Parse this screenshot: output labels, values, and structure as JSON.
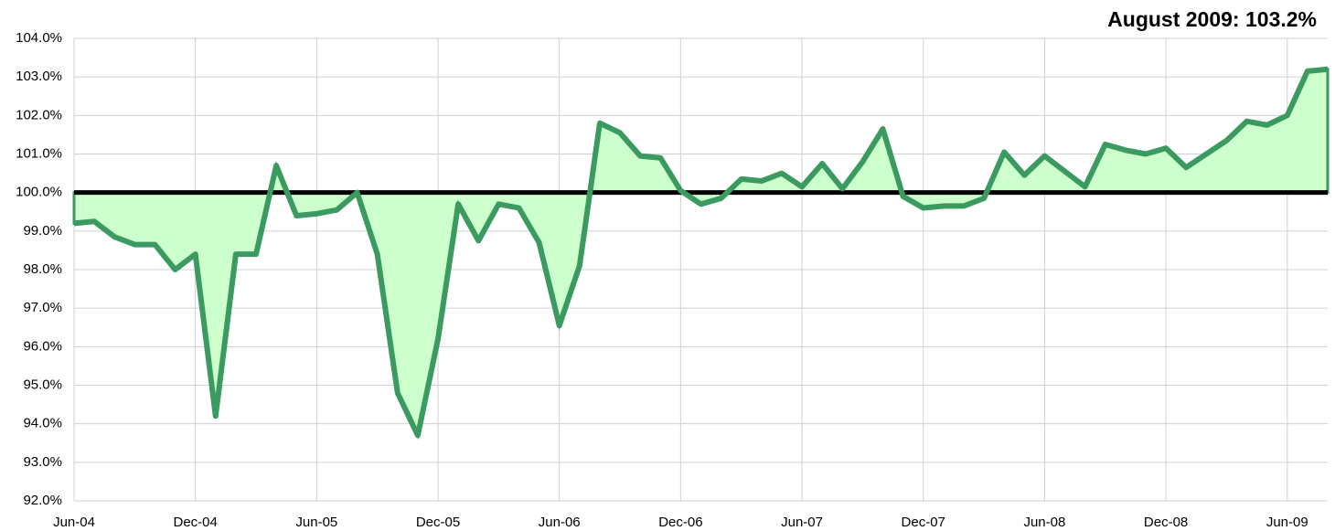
{
  "chart_data": {
    "type": "area",
    "annotation": "August 2009: 103.2%",
    "categories": [
      "Jun-04",
      null,
      null,
      null,
      null,
      null,
      "Dec-04",
      null,
      null,
      null,
      null,
      null,
      "Jun-05",
      null,
      null,
      null,
      null,
      null,
      "Dec-05",
      null,
      null,
      null,
      null,
      null,
      "Jun-06",
      null,
      null,
      null,
      null,
      null,
      "Dec-06",
      null,
      null,
      null,
      null,
      null,
      "Jun-07",
      null,
      null,
      null,
      null,
      null,
      "Dec-07",
      null,
      null,
      null,
      null,
      null,
      "Jun-08",
      null,
      null,
      null,
      null,
      null,
      "Dec-08",
      null,
      null,
      null,
      null,
      null,
      "Jun-09",
      null,
      null
    ],
    "values": [
      99.2,
      99.25,
      98.85,
      98.65,
      98.65,
      98.0,
      98.4,
      94.2,
      98.4,
      98.4,
      100.7,
      99.4,
      99.45,
      99.55,
      100.0,
      98.4,
      94.8,
      93.7,
      96.2,
      99.7,
      98.75,
      99.7,
      99.6,
      98.7,
      96.55,
      98.1,
      101.8,
      101.55,
      100.95,
      100.9,
      100.05,
      99.7,
      99.85,
      100.35,
      100.3,
      100.5,
      100.15,
      100.75,
      100.1,
      100.8,
      101.65,
      99.9,
      99.6,
      99.65,
      99.65,
      99.85,
      101.05,
      100.45,
      100.95,
      100.55,
      100.15,
      101.25,
      101.1,
      101.0,
      101.15,
      100.65,
      101.0,
      101.35,
      101.85,
      101.75,
      102.0,
      103.15,
      103.2
    ],
    "color": "#3a9a60",
    "fill_color": "#ccffcc",
    "baseline": 100,
    "baseline_color": "#000000",
    "ylim": [
      92,
      104
    ],
    "yticks": [
      {
        "value": 92,
        "label": "92.0%"
      },
      {
        "value": 93,
        "label": "93.0%"
      },
      {
        "value": 94,
        "label": "94.0%"
      },
      {
        "value": 95,
        "label": "95.0%"
      },
      {
        "value": 96,
        "label": "96.0%"
      },
      {
        "value": 97,
        "label": "97.0%"
      },
      {
        "value": 98,
        "label": "98.0%"
      },
      {
        "value": 99,
        "label": "99.0%"
      },
      {
        "value": 100,
        "label": "100.0%"
      },
      {
        "value": 101,
        "label": "101.0%"
      },
      {
        "value": 102,
        "label": "102.0%"
      },
      {
        "value": 103,
        "label": "103.0%"
      },
      {
        "value": 104,
        "label": "104.0%"
      }
    ],
    "grid": true
  }
}
